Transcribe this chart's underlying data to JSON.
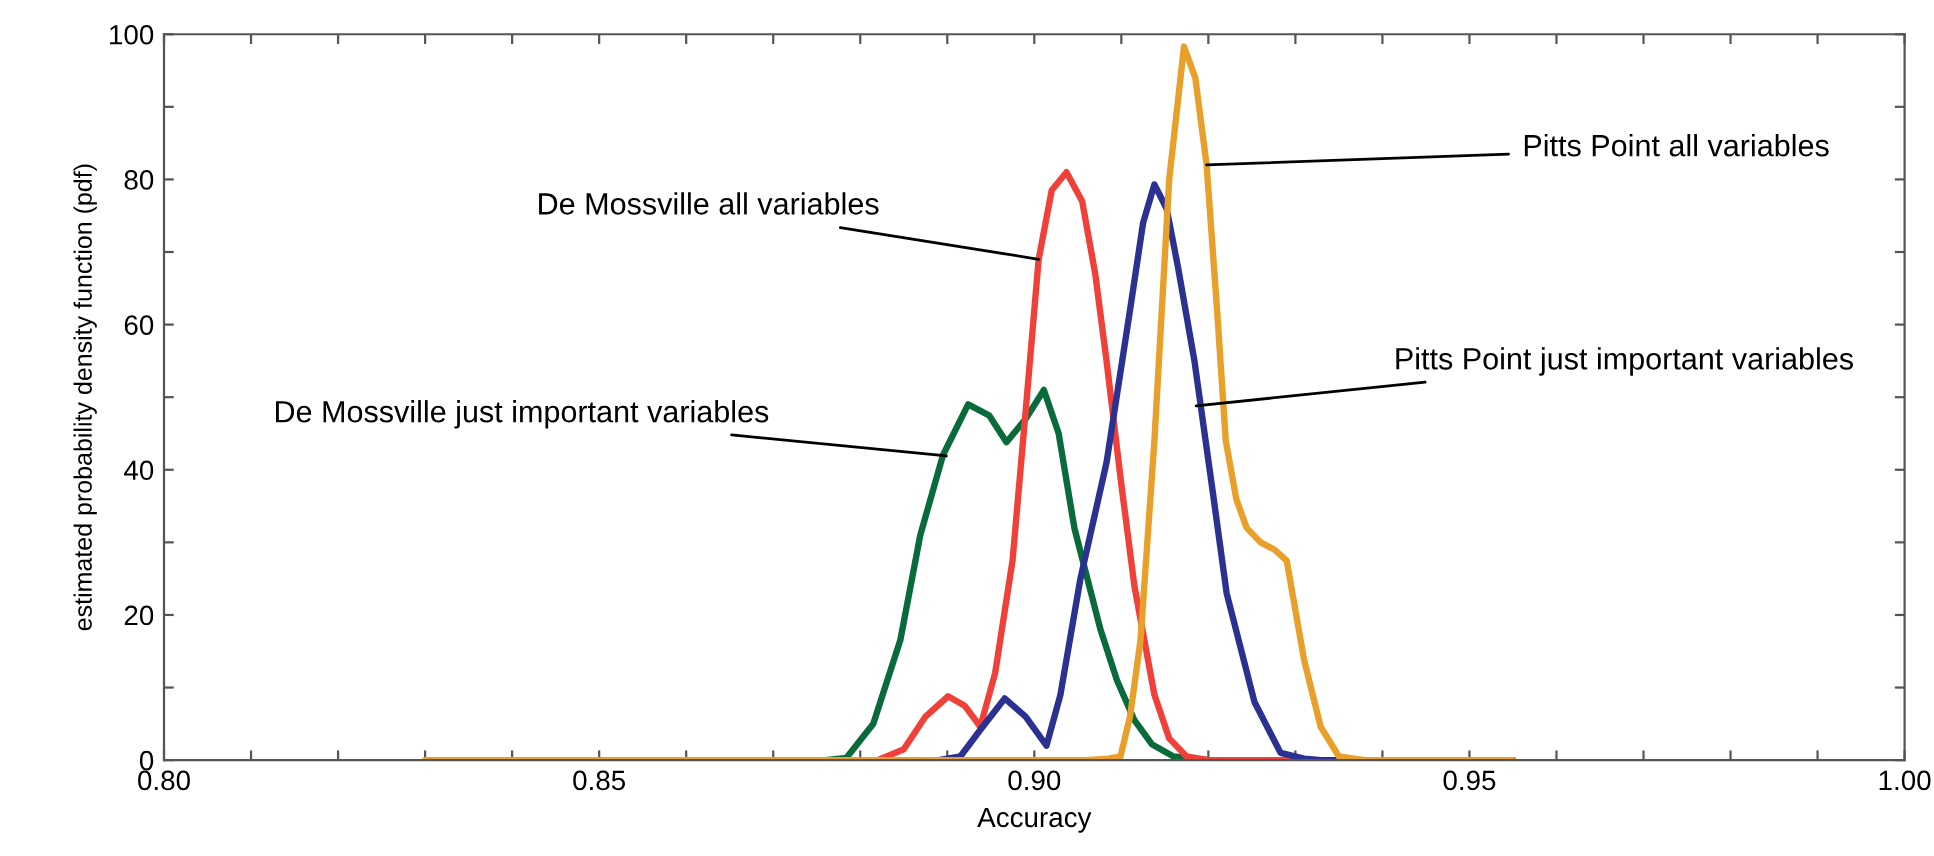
{
  "chart_data": {
    "type": "line",
    "xlabel": "Accuracy",
    "ylabel": "estimated probability density function (pdf)",
    "xlim": [
      0.8,
      1.0
    ],
    "ylim": [
      0,
      100
    ],
    "xticks": [
      "0.80",
      {
        "value": 0.81,
        "label": null
      },
      {
        "value": 0.82,
        "label": null
      },
      {
        "value": 0.83,
        "label": null
      },
      {
        "value": 0.84,
        "label": null
      },
      {
        "value": 0.85,
        "label": "0.85"
      },
      {
        "value": 0.86,
        "label": null
      },
      {
        "value": 0.87,
        "label": null
      },
      {
        "value": 0.88,
        "label": null
      },
      {
        "value": 0.89,
        "label": null
      },
      {
        "value": 0.9,
        "label": "0.90"
      },
      {
        "value": 0.91,
        "label": null
      },
      {
        "value": 0.92,
        "label": null
      },
      {
        "value": 0.93,
        "label": null
      },
      {
        "value": 0.94,
        "label": null
      },
      {
        "value": 0.95,
        "label": "0.95"
      },
      {
        "value": 0.96,
        "label": null
      },
      {
        "value": 0.97,
        "label": null
      },
      {
        "value": 0.98,
        "label": null
      },
      {
        "value": 0.99,
        "label": null
      },
      {
        "value": 1.0,
        "label": "1.00"
      }
    ],
    "yticks": [
      0,
      {
        "value": 10,
        "label": null
      },
      20,
      {
        "value": 30,
        "label": null
      },
      40,
      {
        "value": 50,
        "label": null
      },
      60,
      {
        "value": 70,
        "label": null
      },
      80,
      {
        "value": 90,
        "label": null
      },
      100
    ],
    "grid": false,
    "marker": "none",
    "line_style": "solid",
    "series": [
      {
        "color": "#0a6b3a",
        "x": [
          0.835,
          0.876,
          0.8784,
          0.8815,
          0.8846,
          0.8869,
          0.8895,
          0.8924,
          0.8948,
          0.8968,
          0.899,
          0.9011,
          0.9028,
          0.9046,
          0.9076,
          0.9095,
          0.9115,
          0.9135,
          0.916,
          0.92,
          0.955
        ],
        "values": [
          0,
          0,
          0.3,
          5,
          16.5,
          31,
          42,
          49,
          47.5,
          43.8,
          47,
          51,
          45,
          32,
          18,
          11,
          5.5,
          2.2,
          0.5,
          0,
          0
        ]
      },
      {
        "color": "#f0403a",
        "x": [
          0.835,
          0.882,
          0.885,
          0.8875,
          0.8901,
          0.892,
          0.8938,
          0.8955,
          0.8975,
          0.899,
          0.9005,
          0.902,
          0.9037,
          0.9055,
          0.907,
          0.9083,
          0.91,
          0.9115,
          0.9138,
          0.9155,
          0.9175,
          0.92,
          0.955
        ],
        "values": [
          0,
          0,
          1.5,
          6,
          8.8,
          7.5,
          4.6,
          12,
          27.5,
          48,
          69,
          78.5,
          81,
          77,
          67,
          55,
          38,
          24,
          9,
          3,
          0.5,
          0,
          0
        ]
      },
      {
        "color": "#2b3190",
        "x": [
          0.889,
          0.8915,
          0.894,
          0.8966,
          0.899,
          0.9014,
          0.903,
          0.9053,
          0.9083,
          0.911,
          0.9125,
          0.9138,
          0.9152,
          0.9165,
          0.9184,
          0.9205,
          0.9221,
          0.9253,
          0.9283,
          0.931,
          0.933,
          0.955
        ],
        "values": [
          0,
          0.5,
          4.5,
          8.5,
          6,
          2,
          9,
          25,
          41,
          62,
          74,
          79.3,
          76,
          68,
          55,
          37,
          23,
          8,
          1,
          0.2,
          0,
          0
        ]
      },
      {
        "color": "#e8a02a",
        "x": [
          0.83,
          0.906,
          0.9085,
          0.9099,
          0.911,
          0.9122,
          0.9138,
          0.9155,
          0.9172,
          0.9185,
          0.9198,
          0.921,
          0.922,
          0.9232,
          0.9244,
          0.926,
          0.9276,
          0.929,
          0.931,
          0.9329,
          0.935,
          0.938,
          0.955
        ],
        "values": [
          0,
          0,
          0.2,
          0.5,
          6,
          16.5,
          44,
          80,
          98.3,
          94,
          82,
          62,
          44,
          36,
          32,
          30,
          29,
          27.5,
          13.8,
          4.6,
          0.5,
          0,
          0
        ]
      }
    ],
    "annotations": [
      {
        "text": "De Mossville all variables",
        "x": 0.9005,
        "y": 69
      },
      {
        "text": "De Mossville just important variables",
        "x": 0.8899,
        "y": 41.9
      },
      {
        "text": "Pitts Point all variables",
        "x": 0.9198,
        "y": 82
      },
      {
        "text": "Pitts Point just important variables",
        "x": 0.9186,
        "y": 48.8
      }
    ]
  }
}
